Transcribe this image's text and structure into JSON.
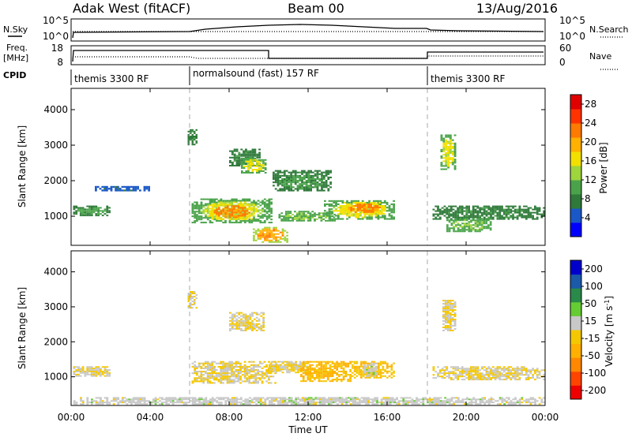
{
  "header": {
    "radar": "Adak West (fitACF)",
    "beam": "Beam 00",
    "date": "13/Aug/2016"
  },
  "noise_panel": {
    "left_label": "N.Sky",
    "right_label": "N.Search",
    "left_ticks": [
      "10^5",
      "10^0"
    ],
    "right_ticks": [
      "10^5",
      "10^0"
    ]
  },
  "freq_panel": {
    "left_label_1": "Freq.",
    "left_label_2": "[MHz]",
    "right_label": "Nave",
    "left_ticks": [
      "18",
      "8"
    ],
    "right_ticks": [
      "60",
      "0"
    ]
  },
  "cpid": {
    "label": "CPID",
    "segments": [
      {
        "text": "themis 3300 RF",
        "start_hour": 0
      },
      {
        "text": "normalsound (fast) 157 RF",
        "start_hour": 6
      },
      {
        "text": "themis 3300 RF",
        "start_hour": 18
      }
    ]
  },
  "chart_data": [
    {
      "type": "heatmap",
      "title": "",
      "xlabel": "Time UT",
      "ylabel": "Slant Range [km]",
      "xlim": [
        0,
        24
      ],
      "ylim": [
        180,
        4600
      ],
      "x_ticks": [
        "00:00",
        "04:00",
        "08:00",
        "12:00",
        "16:00",
        "20:00",
        "00:00"
      ],
      "y_ticks": [
        "1000",
        "2000",
        "3000",
        "4000"
      ],
      "colorbar": {
        "label": "Power [dB]",
        "ticks": [
          "4",
          "8",
          "12",
          "16",
          "20",
          "24",
          "28"
        ],
        "range": [
          0,
          30
        ],
        "colors": [
          "#0000ff",
          "#1a58c8",
          "#2f7a3a",
          "#4aa34a",
          "#9ed43c",
          "#f2e000",
          "#ffb000",
          "#ff7a00",
          "#ff3300",
          "#e00000"
        ]
      },
      "regions": [
        {
          "t0": 0.1,
          "t1": 2.0,
          "r0": 1000,
          "r1": 1300,
          "value": 10
        },
        {
          "t0": 1.2,
          "t1": 4.0,
          "r0": 1700,
          "r1": 1850,
          "value": 5
        },
        {
          "t0": 5.9,
          "t1": 6.4,
          "r0": 2950,
          "r1": 3450,
          "value": 8
        },
        {
          "t0": 6.1,
          "t1": 10.2,
          "r0": 800,
          "r1": 1500,
          "value": 14
        },
        {
          "t0": 7.0,
          "t1": 9.3,
          "r0": 900,
          "r1": 1350,
          "value": 22
        },
        {
          "t0": 8.0,
          "t1": 9.6,
          "r0": 2400,
          "r1": 2900,
          "value": 8
        },
        {
          "t0": 8.6,
          "t1": 9.9,
          "r0": 2200,
          "r1": 2650,
          "value": 16
        },
        {
          "t0": 10.2,
          "t1": 13.2,
          "r0": 1700,
          "r1": 2300,
          "value": 9
        },
        {
          "t0": 10.5,
          "t1": 13.4,
          "r0": 850,
          "r1": 1150,
          "value": 12
        },
        {
          "t0": 12.8,
          "t1": 16.4,
          "r0": 900,
          "r1": 1450,
          "value": 16
        },
        {
          "t0": 13.8,
          "t1": 15.9,
          "r0": 1050,
          "r1": 1400,
          "value": 22
        },
        {
          "t0": 9.2,
          "t1": 11.0,
          "r0": 250,
          "r1": 700,
          "value": 20
        },
        {
          "t0": 18.3,
          "t1": 24.0,
          "r0": 900,
          "r1": 1300,
          "value": 8
        },
        {
          "t0": 18.7,
          "t1": 19.5,
          "r0": 2300,
          "r1": 3300,
          "value": 16
        },
        {
          "t0": 19.0,
          "t1": 21.3,
          "r0": 550,
          "r1": 950,
          "value": 12
        }
      ]
    },
    {
      "type": "heatmap",
      "title": "",
      "xlabel": "Time UT",
      "ylabel": "Slant Range [km]",
      "xlim": [
        0,
        24
      ],
      "ylim": [
        180,
        4600
      ],
      "x_ticks": [
        "00:00",
        "04:00",
        "08:00",
        "12:00",
        "16:00",
        "20:00",
        "00:00"
      ],
      "y_ticks": [
        "1000",
        "2000",
        "3000",
        "4000"
      ],
      "colorbar": {
        "label": "Velocity [m s^-1]",
        "ticks": [
          "200",
          "100",
          "50",
          "15",
          "-15",
          "-50",
          "-100",
          "-200"
        ],
        "range": [
          -250,
          250
        ],
        "colors": [
          "#ee0000",
          "#ff4400",
          "#ff8800",
          "#ffb000",
          "#f4c800",
          "#c8c8c8",
          "#66cc33",
          "#2a8a4a",
          "#1a5aa8",
          "#0000cc"
        ]
      },
      "regions": [
        {
          "t0": 0.1,
          "t1": 2.0,
          "r0": 1000,
          "r1": 1300,
          "value": 0
        },
        {
          "t0": 5.9,
          "t1": 6.4,
          "r0": 2950,
          "r1": 3450,
          "value": 0
        },
        {
          "t0": 6.1,
          "t1": 10.4,
          "r0": 800,
          "r1": 1450,
          "value": 0
        },
        {
          "t0": 8.0,
          "t1": 9.8,
          "r0": 2300,
          "r1": 2850,
          "value": 0
        },
        {
          "t0": 10.0,
          "t1": 12.0,
          "r0": 1100,
          "r1": 1450,
          "value": -5
        },
        {
          "t0": 11.6,
          "t1": 14.2,
          "r0": 850,
          "r1": 1450,
          "value": -60
        },
        {
          "t0": 14.2,
          "t1": 16.4,
          "r0": 950,
          "r1": 1450,
          "value": -45
        },
        {
          "t0": 14.8,
          "t1": 15.5,
          "r0": 1000,
          "r1": 1400,
          "value": 30
        },
        {
          "t0": 18.3,
          "t1": 24.0,
          "r0": 900,
          "r1": 1300,
          "value": 0
        },
        {
          "t0": 18.8,
          "t1": 19.5,
          "r0": 2300,
          "r1": 3200,
          "value": 0
        },
        {
          "t0": 0.0,
          "t1": 24.0,
          "r0": 200,
          "r1": 420,
          "value": 25
        }
      ]
    }
  ]
}
